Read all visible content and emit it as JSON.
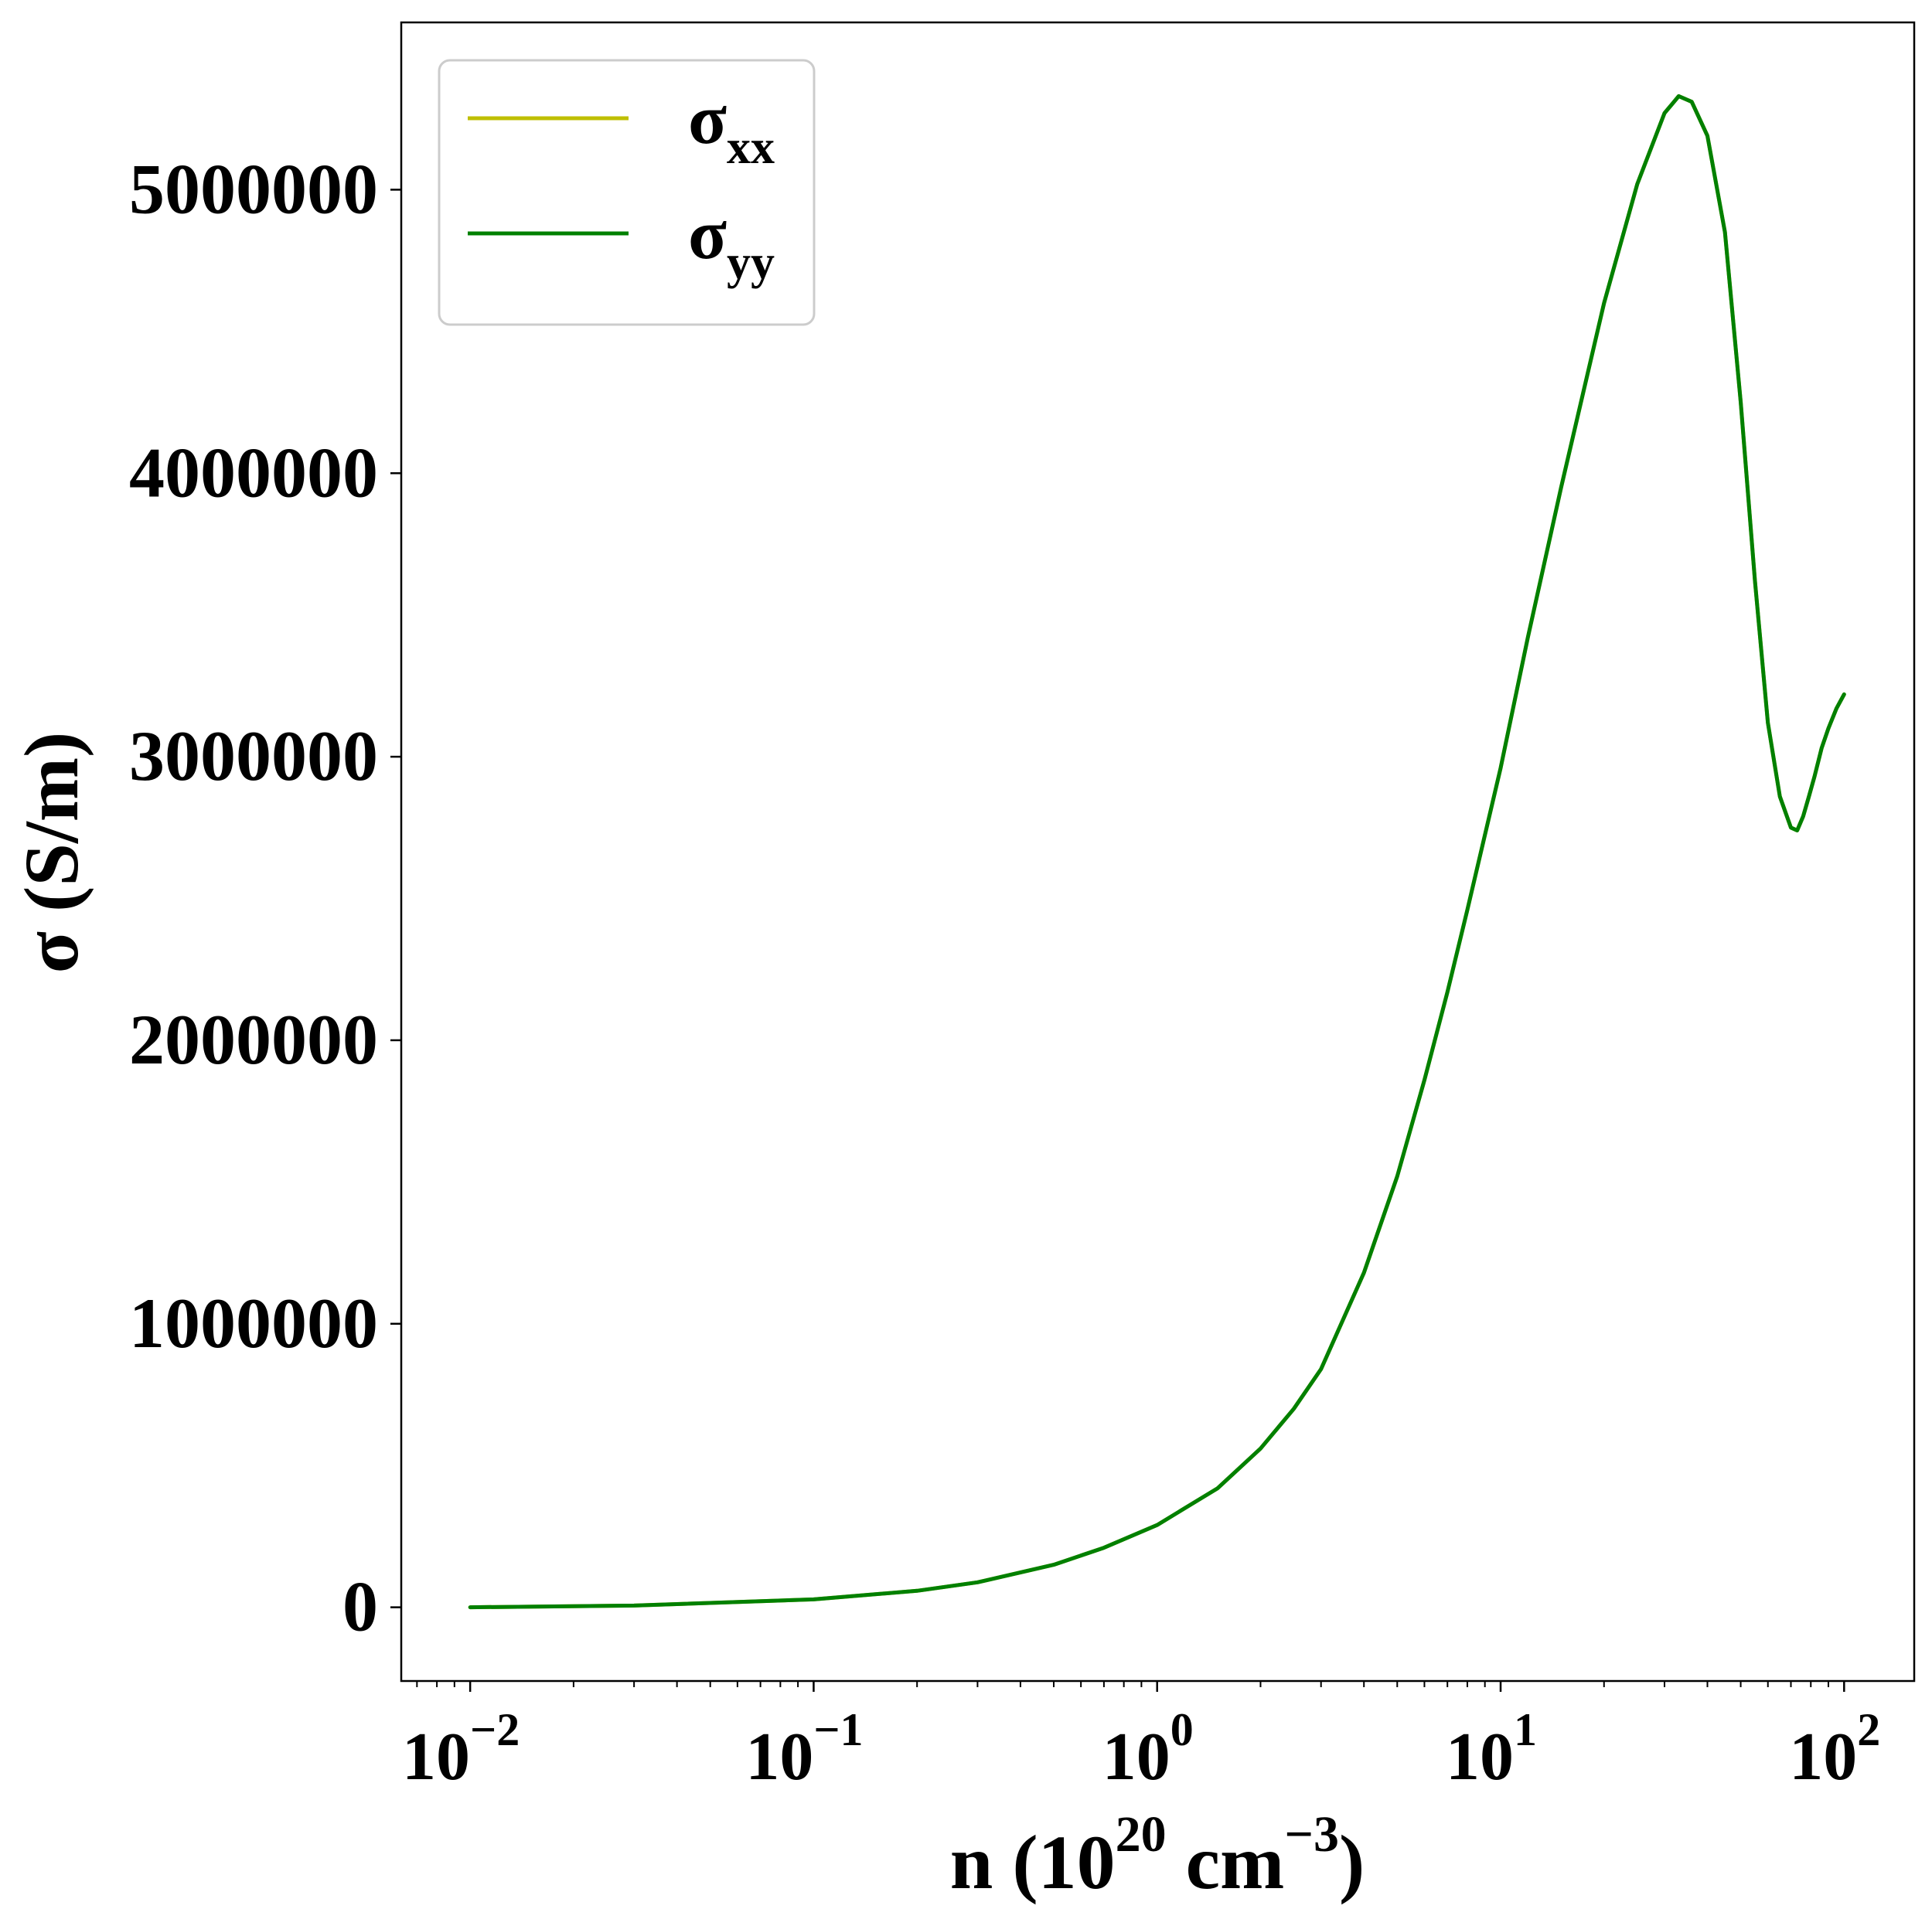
{
  "chart_data": {
    "type": "line",
    "xscale": "log",
    "xlim": [
      0.0063,
      160
    ],
    "ylim": [
      -260000,
      5590000
    ],
    "grid": false,
    "legend_position": "top-left",
    "xlabel": {
      "base": "n (10",
      "exp1": "20",
      "mid": " cm",
      "exp2": "−3",
      "end": ")"
    },
    "ylabel": "σ (S/m)",
    "x_ticks": [
      {
        "value": 0.01,
        "base": "10",
        "exp": "−2"
      },
      {
        "value": 0.1,
        "base": "10",
        "exp": "−1"
      },
      {
        "value": 1,
        "base": "10",
        "exp": "0"
      },
      {
        "value": 10,
        "base": "10",
        "exp": "1"
      },
      {
        "value": 100,
        "base": "10",
        "exp": "2"
      }
    ],
    "y_ticks": [
      {
        "value": 0,
        "label": "0"
      },
      {
        "value": 1000000,
        "label": "1000000"
      },
      {
        "value": 2000000,
        "label": "2000000"
      },
      {
        "value": 3000000,
        "label": "3000000"
      },
      {
        "value": 4000000,
        "label": "4000000"
      },
      {
        "value": 5000000,
        "label": "5000000"
      }
    ],
    "x": [
      0.01,
      0.03,
      0.1,
      0.2,
      0.3,
      0.5,
      0.7,
      1.0,
      1.5,
      2.0,
      2.5,
      3.0,
      4.0,
      5.0,
      6.0,
      7.0,
      8.0,
      10.0,
      12.0,
      15.0,
      20.0,
      25.0,
      30.0,
      33.0,
      36.0,
      40.0,
      45.0,
      50.0,
      55.0,
      60.0,
      65.0,
      70.0,
      73.0,
      76.0,
      79.0,
      82.0,
      86.0,
      90.0,
      95.0,
      100.0
    ],
    "series": [
      {
        "name": "σxx",
        "label_base": "σ",
        "label_sub": "xx",
        "color": "#bfbf00",
        "values": [
          0,
          6000,
          28000,
          58000,
          88000,
          150000,
          210000,
          290000,
          420000,
          560000,
          700000,
          840000,
          1180000,
          1520000,
          1860000,
          2170000,
          2460000,
          2960000,
          3420000,
          3950000,
          4600000,
          5020000,
          5270000,
          5330000,
          5310000,
          5190000,
          4850000,
          4250000,
          3620000,
          3120000,
          2860000,
          2750000,
          2740000,
          2790000,
          2860000,
          2930000,
          3030000,
          3100000,
          3170000,
          3220000
        ]
      },
      {
        "name": "σyy",
        "label_base": "σ",
        "label_sub": "yy",
        "color": "#008000",
        "values": [
          0,
          6000,
          28000,
          58000,
          88000,
          150000,
          210000,
          290000,
          420000,
          560000,
          700000,
          840000,
          1180000,
          1520000,
          1860000,
          2170000,
          2460000,
          2960000,
          3420000,
          3950000,
          4600000,
          5020000,
          5270000,
          5330000,
          5310000,
          5190000,
          4850000,
          4250000,
          3620000,
          3120000,
          2860000,
          2750000,
          2740000,
          2790000,
          2860000,
          2930000,
          3030000,
          3100000,
          3170000,
          3220000
        ]
      }
    ]
  }
}
